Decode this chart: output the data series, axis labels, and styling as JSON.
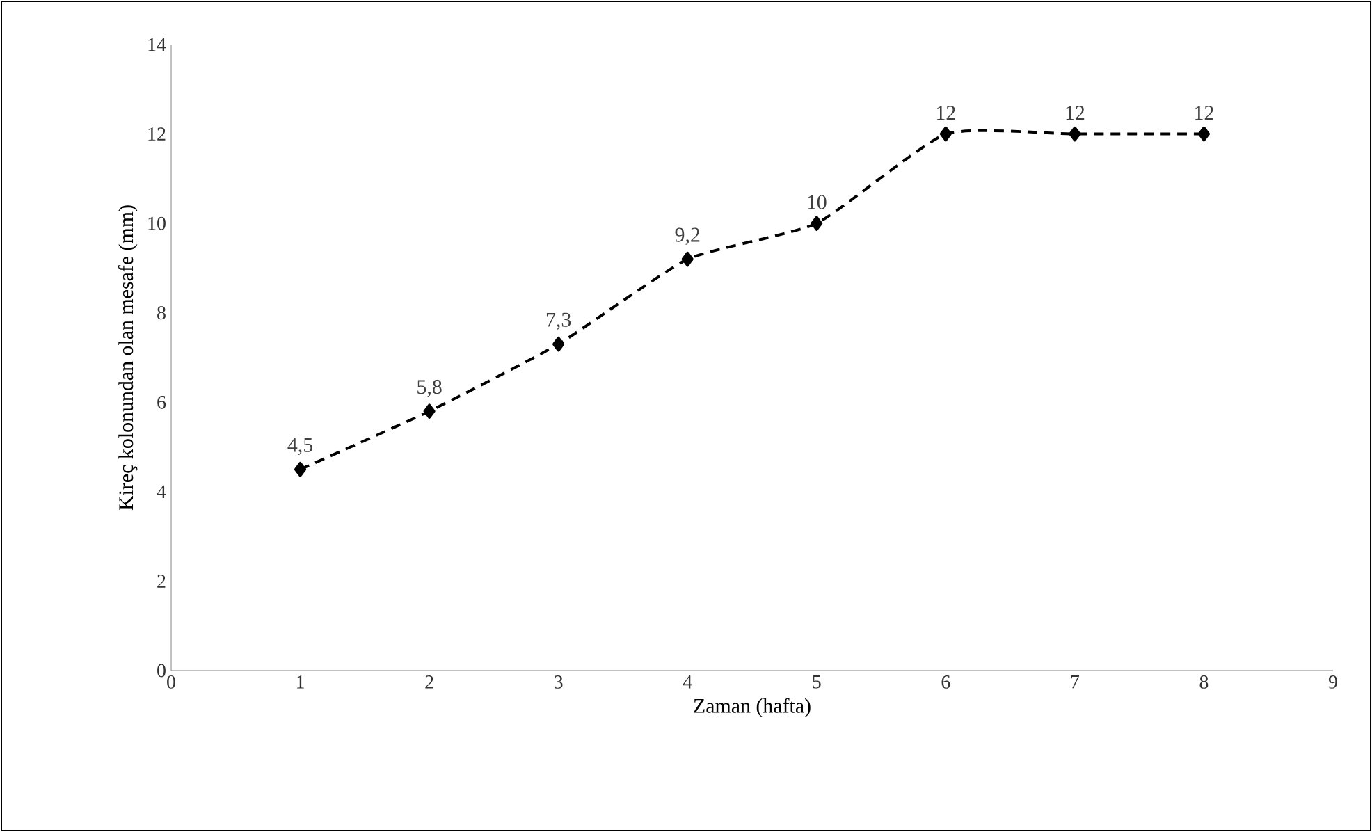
{
  "chart_data": {
    "type": "line",
    "xlabel": "Zaman (hafta)",
    "ylabel": "Kireç kolonundan olan mesafe (mm)",
    "x": [
      1,
      2,
      3,
      4,
      5,
      6,
      7,
      8
    ],
    "series": [
      {
        "color": "#000000",
        "values": [
          4.5,
          5.8,
          7.3,
          9.2,
          10,
          12,
          12,
          12
        ],
        "value_labels": [
          "4,5",
          "5,8",
          "7,3",
          "9,2",
          "10",
          "12",
          "12",
          "12"
        ]
      }
    ],
    "xlim": [
      0,
      9
    ],
    "xticks": [
      0,
      1,
      2,
      3,
      4,
      5,
      6,
      7,
      8,
      9
    ],
    "ylim": [
      0,
      14
    ],
    "yticks": [
      0,
      2,
      4,
      6,
      8,
      10,
      12,
      14
    ],
    "marker": "diamond",
    "line_style": "dashed"
  }
}
